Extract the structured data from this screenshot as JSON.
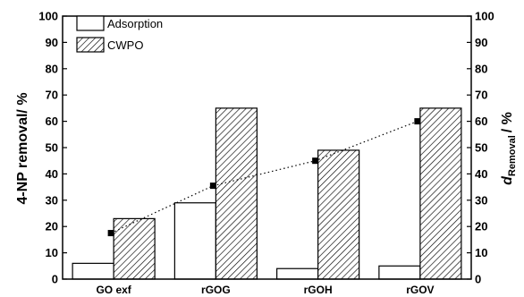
{
  "chart_data": {
    "type": "bar",
    "categories": [
      "GO exf",
      "rGOG",
      "rGOH",
      "rGOV"
    ],
    "series": [
      {
        "name": "Adsorption",
        "kind": "bar",
        "axis": "left",
        "pattern": "open",
        "values": [
          6,
          29,
          4,
          5
        ]
      },
      {
        "name": "CWPO",
        "kind": "bar",
        "axis": "left",
        "pattern": "hatched",
        "values": [
          23,
          65,
          49,
          65
        ]
      },
      {
        "name": "",
        "kind": "scatter-dotted-line",
        "axis": "right",
        "values": [
          17.5,
          35.5,
          45,
          60
        ]
      }
    ],
    "ylabel_left": "4-NP removal/ %",
    "ylabel_right_main": "d",
    "ylabel_right_sub": "Removal",
    "ylabel_right_suffix": "/ %",
    "ylim": [
      0,
      100
    ],
    "y_ticks": [
      0,
      10,
      20,
      30,
      40,
      50,
      60,
      70,
      80,
      90,
      100
    ],
    "legend_position": "top-left",
    "grid": false,
    "colors": {
      "axis": "#000000",
      "bar_open_fill": "#ffffff",
      "hatch": "#000000",
      "marker": "#000000"
    }
  }
}
